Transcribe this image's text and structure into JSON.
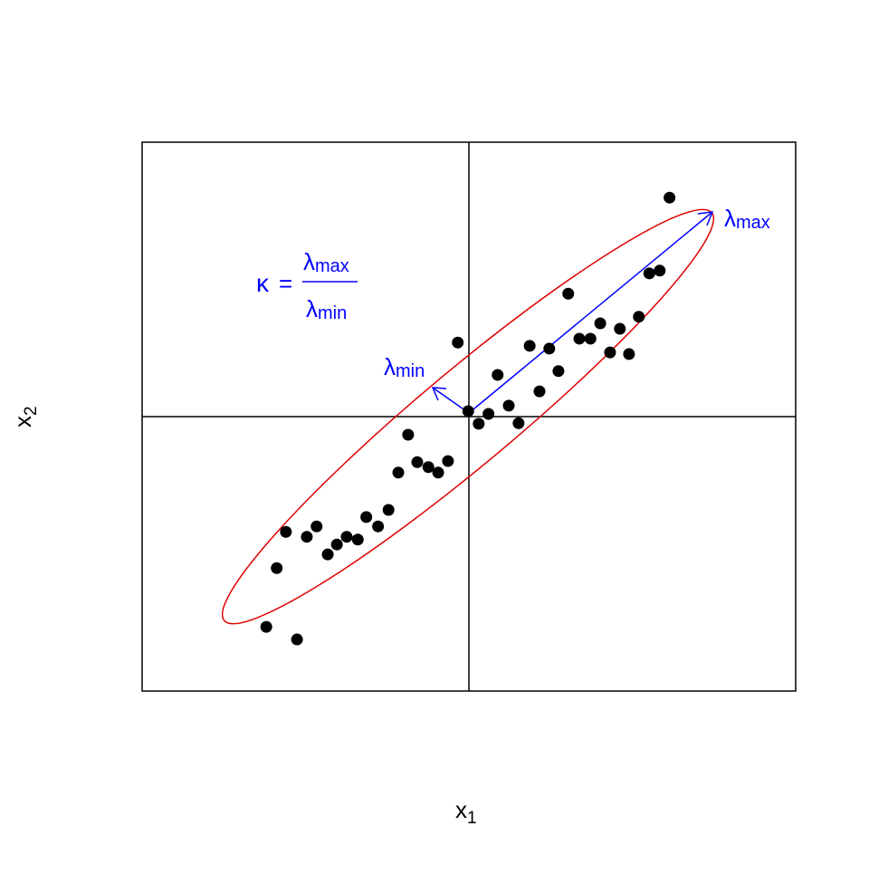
{
  "chart_data": {
    "type": "scatter",
    "x_label": {
      "text": "x",
      "subscript": "1"
    },
    "y_label": {
      "text": "x",
      "subscript": "2"
    },
    "annotations": {
      "kappa": {
        "symbol": "κ",
        "equals": "=",
        "numerator": {
          "symbol": "λ",
          "subscript": "max"
        },
        "denominator": {
          "symbol": "λ",
          "subscript": "min"
        }
      },
      "lambda_min": {
        "symbol": "λ",
        "subscript": "min"
      },
      "lambda_max": {
        "symbol": "λ",
        "subscript": "max"
      }
    },
    "xlim": [
      -5,
      5
    ],
    "ylim": [
      -5,
      5
    ],
    "color": "#000000",
    "x": [
      3.07,
      2.76,
      2.92,
      1.52,
      2.6,
      2.01,
      2.31,
      1.69,
      1.86,
      2.16,
      2.45,
      0.93,
      1.23,
      -0.17,
      0.44,
      1.37,
      1.08,
      0.61,
      -0.01,
      0.3,
      0.15,
      0.76,
      -0.93,
      -1.08,
      -0.79,
      -0.62,
      -0.47,
      -0.32,
      -1.23,
      -1.57,
      -1.39,
      -1.87,
      -1.7,
      -2.02,
      -2.16,
      -2.33,
      -2.48,
      -2.8,
      -2.94,
      -3.1,
      -2.63
    ],
    "y": [
      3.99,
      2.61,
      2.66,
      2.24,
      1.82,
      1.7,
      1.6,
      1.42,
      1.42,
      1.17,
      1.14,
      1.29,
      1.24,
      1.35,
      0.76,
      0.83,
      0.46,
      0.2,
      0.1,
      0.05,
      -0.13,
      -0.12,
      -0.33,
      -1.02,
      -0.83,
      -0.92,
      -1.02,
      -0.81,
      -1.7,
      -1.83,
      -2.0,
      -2.19,
      -2.24,
      -2.33,
      -2.51,
      -2.0,
      -2.19,
      -2.1,
      -2.76,
      -3.83,
      -4.06
    ]
  }
}
